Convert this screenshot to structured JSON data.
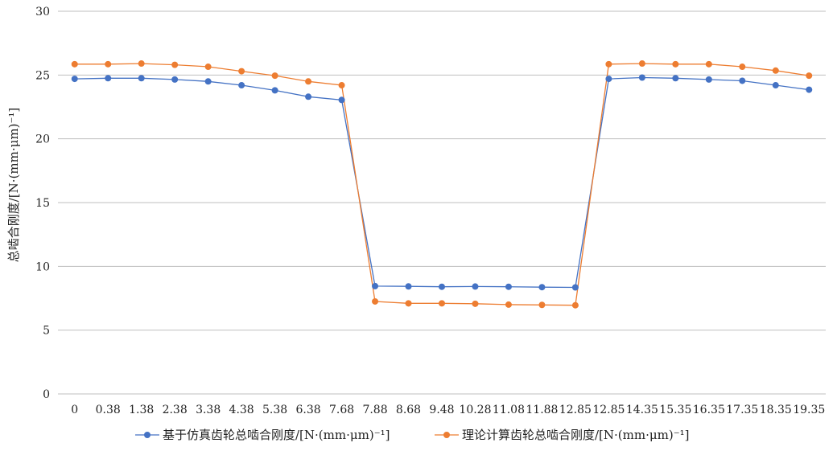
{
  "chart_data": {
    "type": "line",
    "title": "",
    "xlabel": "",
    "ylabel": "总啮合刚度/[N·(mm·μm)⁻¹]",
    "ylim": [
      0,
      30
    ],
    "yticks": [
      0,
      5,
      10,
      15,
      20,
      25,
      30
    ],
    "grid": true,
    "legend_position": "bottom",
    "categories": [
      "0",
      "0.38",
      "1.38",
      "2.38",
      "3.38",
      "4.38",
      "5.38",
      "6.38",
      "7.68",
      "7.88",
      "8.68",
      "9.48",
      "10.28",
      "11.08",
      "11.88",
      "12.85",
      "12.85",
      "14.35",
      "15.35",
      "16.35",
      "17.35",
      "18.35",
      "19.35"
    ],
    "series": [
      {
        "name": "基于仿真齿轮总啮合刚度/[N·(mm·μm)⁻¹]",
        "color": "#4472C4",
        "values": [
          24.7,
          24.75,
          24.75,
          24.65,
          24.5,
          24.2,
          23.8,
          23.3,
          23.05,
          8.45,
          8.43,
          8.4,
          8.42,
          8.4,
          8.37,
          8.35,
          24.7,
          24.8,
          24.75,
          24.65,
          24.55,
          24.2,
          23.85
        ]
      },
      {
        "name": "理论计算齿轮总啮合刚度/[N·(mm·μm)⁻¹]",
        "color": "#ED7D31",
        "values": [
          25.85,
          25.85,
          25.9,
          25.8,
          25.65,
          25.3,
          24.95,
          24.5,
          24.2,
          7.25,
          7.1,
          7.1,
          7.07,
          7.0,
          6.98,
          6.95,
          25.85,
          25.9,
          25.85,
          25.85,
          25.65,
          25.35,
          24.95
        ]
      }
    ]
  }
}
